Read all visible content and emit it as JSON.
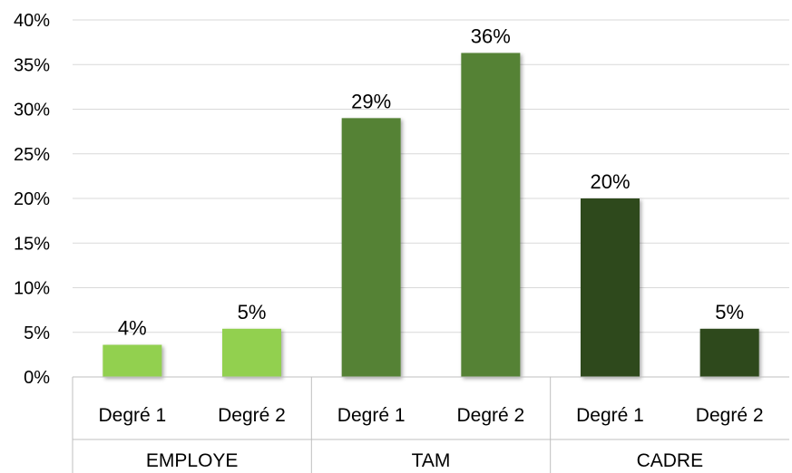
{
  "chart_data": {
    "type": "bar",
    "title": "",
    "xlabel": "",
    "ylabel": "",
    "ylim": [
      0,
      40
    ],
    "yticks": [
      "0%",
      "5%",
      "10%",
      "15%",
      "20%",
      "25%",
      "30%",
      "35%",
      "40%"
    ],
    "grid": true,
    "legend": "none",
    "groups": [
      {
        "name": "EMPLOYE",
        "color": "#92d050",
        "categories": [
          "Degré 1",
          "Degré 2"
        ],
        "values": [
          3.6,
          5.4
        ],
        "labels": [
          "4%",
          "5%"
        ]
      },
      {
        "name": "TAM",
        "color": "#548235",
        "categories": [
          "Degré 1",
          "Degré 2"
        ],
        "values": [
          29,
          36.3
        ],
        "labels": [
          "29%",
          "36%"
        ]
      },
      {
        "name": "CADRE",
        "color": "#2e4a1f",
        "categories": [
          "Degré 1",
          "Degré 2"
        ],
        "values": [
          20,
          5.4
        ],
        "labels": [
          "20%",
          "5%"
        ]
      }
    ]
  }
}
